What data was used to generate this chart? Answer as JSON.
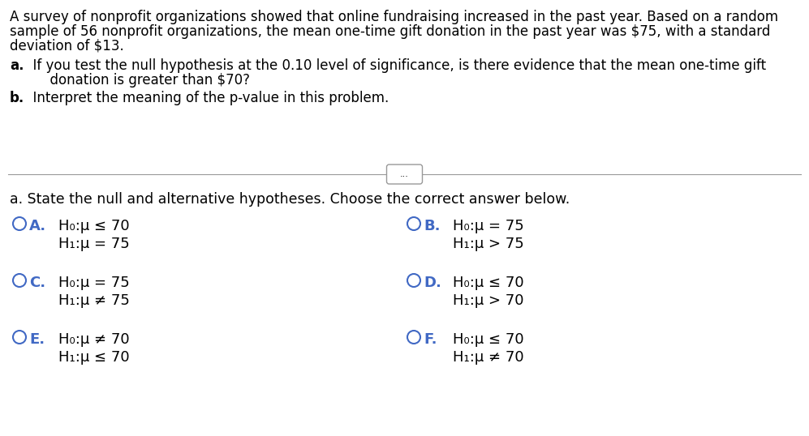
{
  "bg_color": "#ffffff",
  "text_color": "#000000",
  "blue_color": "#4169C4",
  "gray_color": "#999999",
  "para_line1": "A survey of nonprofit organizations showed that online fundraising increased in the past year. Based on a random",
  "para_line2": "sample of 56 nonprofit organizations, the mean one-time gift donation in the past year was $75, with a standard",
  "para_line3": "deviation of $13.",
  "qa_prefix": "a.",
  "qa_text": "  If you test the null hypothesis at the 0.10 level of significance, is there evidence that the mean one-time gift",
  "qa_text2": "      donation is greater than $70?",
  "qb_prefix": "b.",
  "qb_text": "  Interpret the meaning of the p-value in this problem.",
  "answer_header": "a. State the null and alternative hypotheses. Choose the correct answer below.",
  "dots_text": "...",
  "options": [
    {
      "label": "A.",
      "line1": "H₀:μ ≤ 70",
      "line2": "H₁:μ = 75"
    },
    {
      "label": "B.",
      "line1": "H₀:μ = 75",
      "line2": "H₁:μ > 75"
    },
    {
      "label": "C.",
      "line1": "H₀:μ = 75",
      "line2": "H₁:μ ≠ 75"
    },
    {
      "label": "D.",
      "line1": "H₀:μ ≤ 70",
      "line2": "H₁:μ > 70"
    },
    {
      "label": "E.",
      "line1": "H₀:μ ≠ 70",
      "line2": "H₁:μ ≤ 70"
    },
    {
      "label": "F.",
      "line1": "H₀:μ ≤ 70",
      "line2": "H₁:μ ≠ 70"
    }
  ],
  "fs_para": 12.0,
  "fs_opt_label": 13.0,
  "fs_opt_text": 13.0,
  "fs_hdr": 12.5
}
